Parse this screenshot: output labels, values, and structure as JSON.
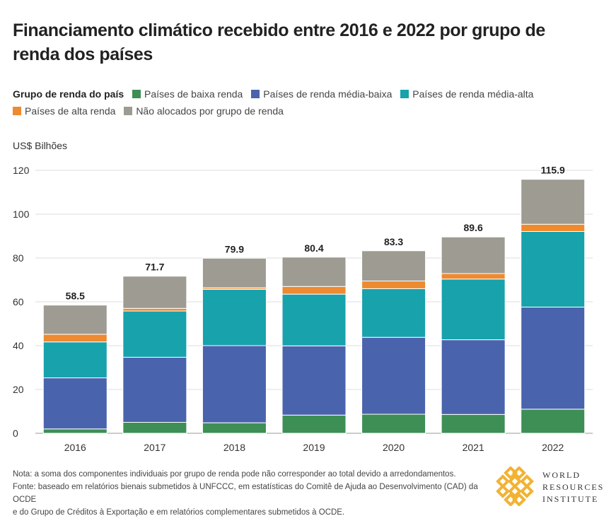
{
  "title": "Financiamento climático recebido entre 2016 e 2022 por grupo de renda dos países",
  "legend": {
    "label": "Grupo de renda do país",
    "items": [
      {
        "name": "Países de baixa renda",
        "color": "#3d8f55"
      },
      {
        "name": "Países de renda média-baixa",
        "color": "#4a63ad"
      },
      {
        "name": "Países de renda média-alta",
        "color": "#17a2ac"
      },
      {
        "name": "Países de alta renda",
        "color": "#ee8a30"
      },
      {
        "name": "Não alocados por grupo de renda",
        "color": "#9e9c92"
      }
    ]
  },
  "chart_data": {
    "type": "bar",
    "stacked": true,
    "title": "Financiamento climático recebido entre 2016 e 2022 por grupo de renda dos países",
    "ylabel": "US$ Bilhões",
    "xlabel": "",
    "ylim": [
      0,
      120
    ],
    "yticks": [
      0,
      20,
      40,
      60,
      80,
      100,
      120
    ],
    "grid": true,
    "legend_position": "top",
    "categories": [
      "2016",
      "2017",
      "2018",
      "2019",
      "2020",
      "2021",
      "2022"
    ],
    "series": [
      {
        "name": "Países de baixa renda",
        "color": "#3d8f55",
        "values": [
          2.0,
          5.0,
          4.8,
          8.3,
          8.7,
          8.6,
          11.0
        ]
      },
      {
        "name": "Países de renda média-baixa",
        "color": "#4a63ad",
        "values": [
          23.3,
          29.7,
          35.2,
          31.6,
          35.1,
          34.1,
          46.6
        ]
      },
      {
        "name": "Países de renda média-alta",
        "color": "#17a2ac",
        "values": [
          16.4,
          21.1,
          25.7,
          23.6,
          22.2,
          27.7,
          34.5
        ]
      },
      {
        "name": "Países de alta renda",
        "color": "#ee8a30",
        "values": [
          3.5,
          1.2,
          0.7,
          3.5,
          3.5,
          2.5,
          3.3
        ]
      },
      {
        "name": "Não alocados por grupo de renda",
        "color": "#9e9c92",
        "values": [
          13.3,
          14.7,
          13.5,
          13.4,
          13.8,
          16.7,
          20.5
        ]
      }
    ],
    "totals": [
      "58.5",
      "71.7",
      "79.9",
      "80.4",
      "83.3",
      "89.6",
      "115.9"
    ]
  },
  "notes": {
    "line1": "Nota: a soma dos componentes individuais por grupo de renda pode não corresponder ao total devido a arredondamentos.",
    "line2": "Fonte: baseado em relatórios bienais submetidos à UNFCCC, em estatísticas do Comitê de Ajuda ao Desenvolvimento (CAD) da OCDE",
    "line3": "e do Grupo de Créditos à Exportação e em relatórios complementares submetidos à OCDE."
  },
  "logo": {
    "line1": "WORLD",
    "line2": "RESOURCES",
    "line3": "INSTITUTE",
    "color": "#f2b233"
  }
}
